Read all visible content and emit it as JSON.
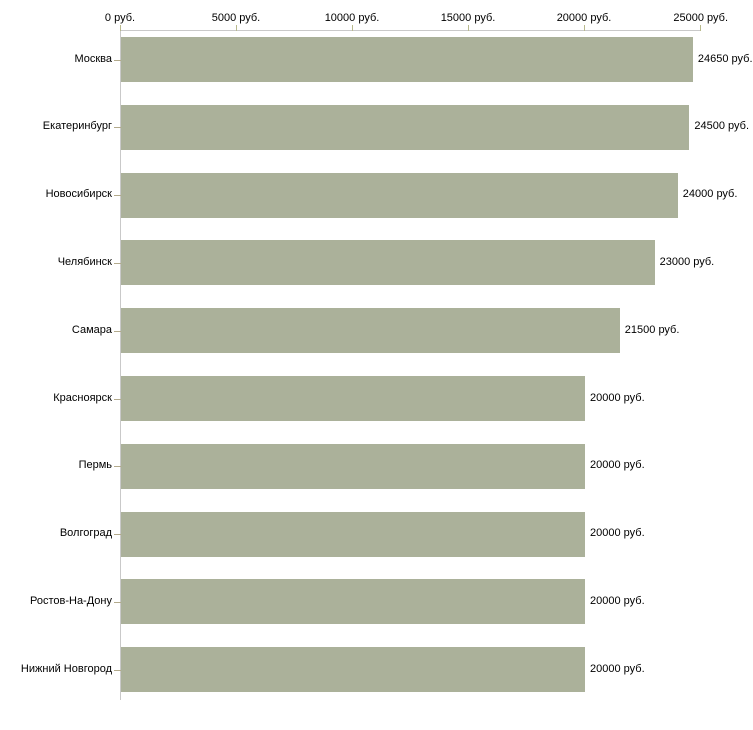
{
  "chart_data": {
    "type": "bar",
    "orientation": "horizontal",
    "title": "",
    "xlabel": "",
    "ylabel": "",
    "categories": [
      "Москва",
      "Екатеринбург",
      "Новосибирск",
      "Челябинск",
      "Самара",
      "Красноярск",
      "Пермь",
      "Волгоград",
      "Ростов-На-Дону",
      "Нижний Новгород"
    ],
    "values": [
      24650,
      24500,
      24000,
      23000,
      21500,
      20000,
      20000,
      20000,
      20000,
      20000
    ],
    "value_labels": [
      "24650 руб.",
      "24500 руб.",
      "24000 руб.",
      "23000 руб.",
      "21500 руб.",
      "20000 руб.",
      "20000 руб.",
      "20000 руб.",
      "20000 руб.",
      "20000 руб."
    ],
    "x_axis": {
      "position": "top",
      "min": 0,
      "max": 25000,
      "tick_values": [
        0,
        5000,
        10000,
        15000,
        20000,
        25000
      ],
      "tick_labels": [
        "0 руб.",
        "5000 руб.",
        "10000 руб.",
        "15000 руб.",
        "20000 руб.",
        "25000 руб."
      ]
    },
    "legend": "none",
    "grid": "off",
    "colors": {
      "bar": "#abb19a",
      "axis_line": "#c9c9c9",
      "x_tick": "#b8b98c",
      "category_tick": "#b3aa8c",
      "text": "#000000",
      "background": "#ffffff"
    }
  }
}
